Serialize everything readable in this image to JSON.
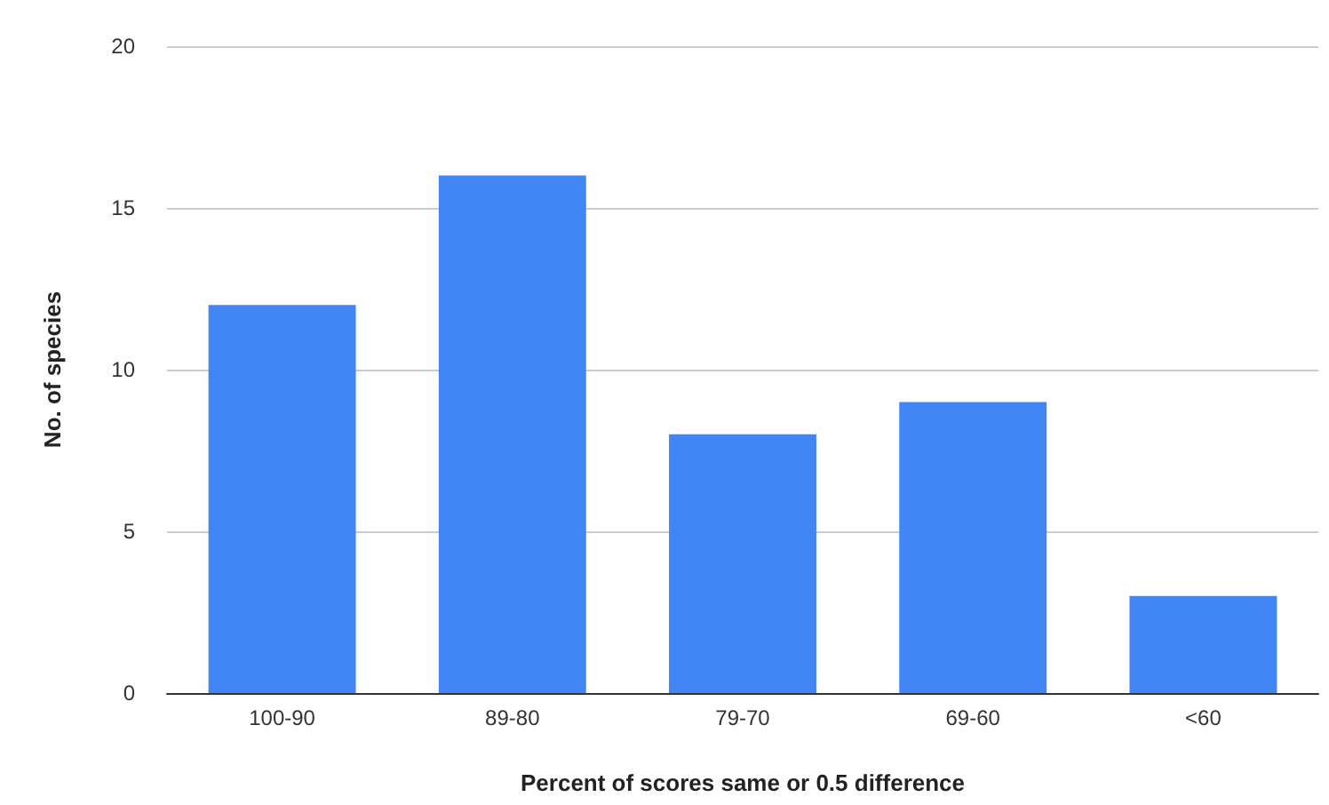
{
  "chart_data": {
    "type": "bar",
    "xlabel": "Percent of scores same or 0.5 difference",
    "ylabel": "No. of species",
    "categories": [
      "100-90",
      "89-80",
      "79-70",
      "69-60",
      "<60"
    ],
    "values": [
      12,
      16,
      8,
      9,
      3
    ],
    "color": "#4285f4",
    "ylim": [
      0,
      20
    ],
    "yticks": [
      0,
      5,
      10,
      15,
      20
    ],
    "grid": "y"
  }
}
